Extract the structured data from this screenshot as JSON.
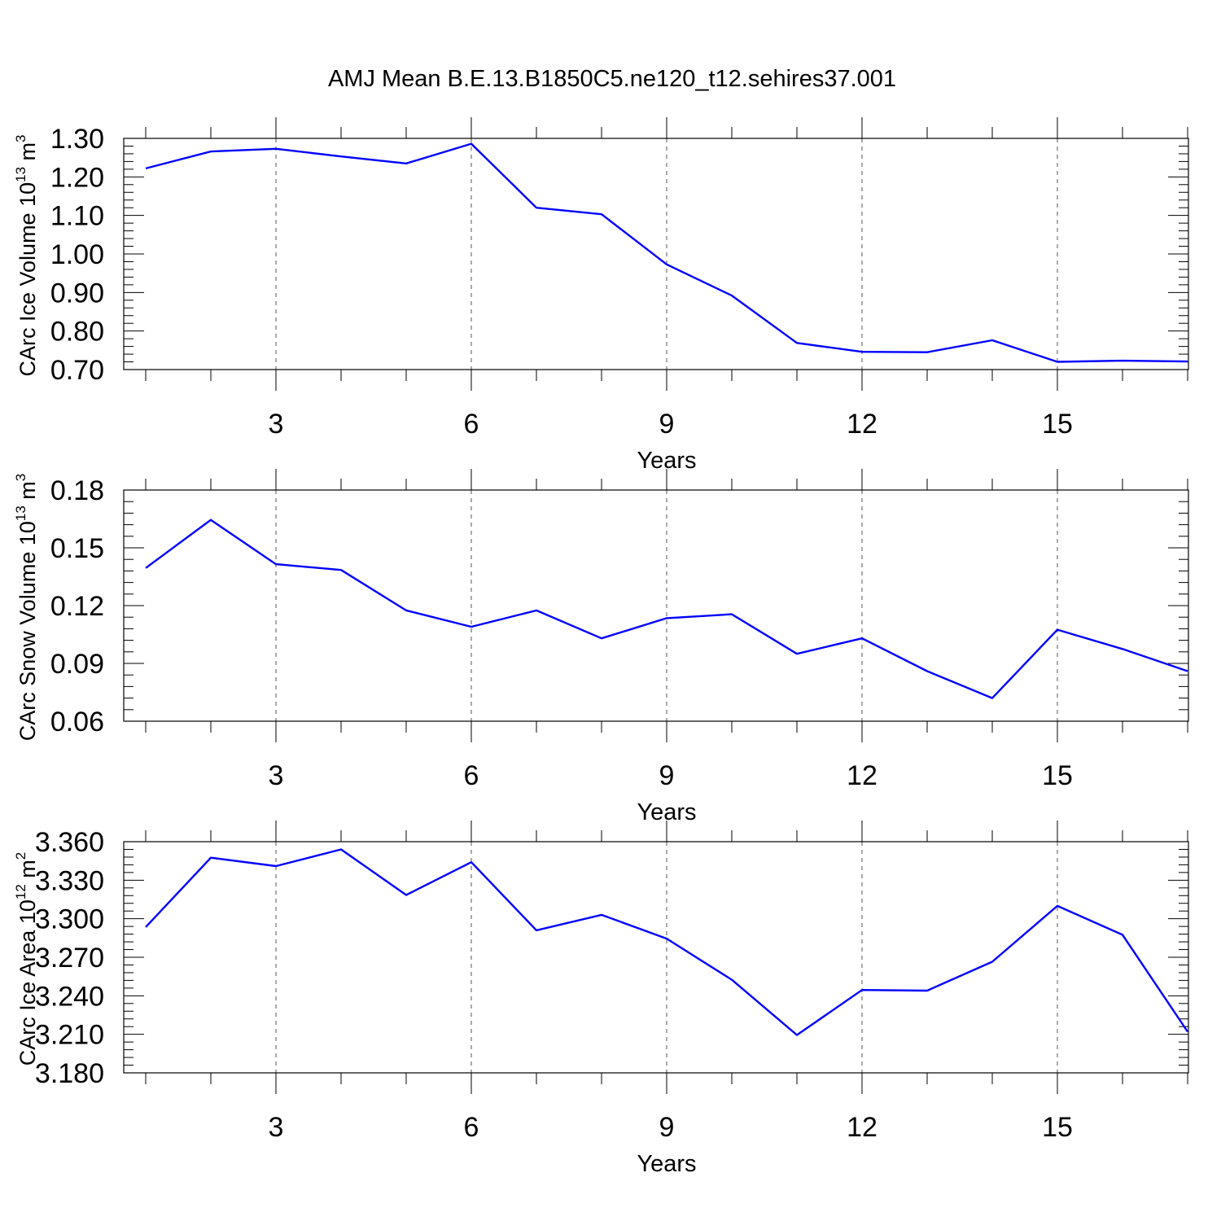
{
  "figure": {
    "title": "AMJ Mean B.E.13.B1850C5.ne120_t12.sehires37.001",
    "line_color": "#0000ff",
    "axis_color": "#000000",
    "grid_color": "#555555"
  },
  "chart_data": [
    {
      "type": "line",
      "ylabel": "CArc Ice Volume 10",
      "ylabel_exp": "13",
      "ylabel_unit": " m",
      "ylabel_unit_exp": "3",
      "xlabel": "Years",
      "xlim": [
        1,
        17
      ],
      "ylim": [
        0.7,
        1.3
      ],
      "xticks": [
        3,
        6,
        9,
        12,
        15
      ],
      "yticks": [
        "0.70",
        "0.80",
        "0.90",
        "1.00",
        "1.10",
        "1.20",
        "1.30"
      ],
      "grid": "vertical dashed at major x ticks",
      "x": [
        1,
        2,
        3,
        4,
        5,
        6,
        7,
        8,
        9,
        10,
        11,
        12,
        13,
        14,
        15,
        16,
        17
      ],
      "y": [
        1.222,
        1.266,
        1.273,
        1.253,
        1.235,
        1.286,
        1.12,
        1.103,
        0.973,
        0.892,
        0.769,
        0.746,
        0.745,
        0.776,
        0.72,
        0.723,
        0.721
      ]
    },
    {
      "type": "line",
      "ylabel": "CArc Snow Volume 10",
      "ylabel_exp": "13",
      "ylabel_unit": " m",
      "ylabel_unit_exp": "3",
      "xlabel": "Years",
      "xlim": [
        1,
        17
      ],
      "ylim": [
        0.06,
        0.18
      ],
      "xticks": [
        3,
        6,
        9,
        12,
        15
      ],
      "yticks": [
        "0.06",
        "0.09",
        "0.12",
        "0.15",
        "0.18"
      ],
      "grid": "vertical dashed at major x ticks",
      "x": [
        1,
        2,
        3,
        4,
        5,
        6,
        7,
        8,
        9,
        10,
        11,
        12,
        13,
        14,
        15,
        16,
        17
      ],
      "y": [
        0.1395,
        0.1645,
        0.1415,
        0.1385,
        0.1175,
        0.109,
        0.1175,
        0.103,
        0.1135,
        0.1155,
        0.095,
        0.103,
        0.086,
        0.072,
        0.1075,
        0.0975,
        0.086
      ]
    },
    {
      "type": "line",
      "ylabel": "CArc Ice Area 10",
      "ylabel_exp": "12",
      "ylabel_unit": " m",
      "ylabel_unit_exp": "2",
      "xlabel": "Years",
      "xlim": [
        1,
        17
      ],
      "ylim": [
        3.18,
        3.36
      ],
      "xticks": [
        3,
        6,
        9,
        12,
        15
      ],
      "yticks": [
        "3.180",
        "3.210",
        "3.240",
        "3.270",
        "3.300",
        "3.330",
        "3.360"
      ],
      "grid": "vertical dashed at major x ticks",
      "x": [
        1,
        2,
        3,
        4,
        5,
        6,
        7,
        8,
        9,
        10,
        11,
        12,
        13,
        14,
        15,
        16,
        17
      ],
      "y": [
        3.2935,
        3.3475,
        3.341,
        3.354,
        3.3185,
        3.344,
        3.291,
        3.303,
        3.2845,
        3.2525,
        3.2095,
        3.2445,
        3.244,
        3.2665,
        3.31,
        3.2875,
        3.212
      ]
    }
  ]
}
